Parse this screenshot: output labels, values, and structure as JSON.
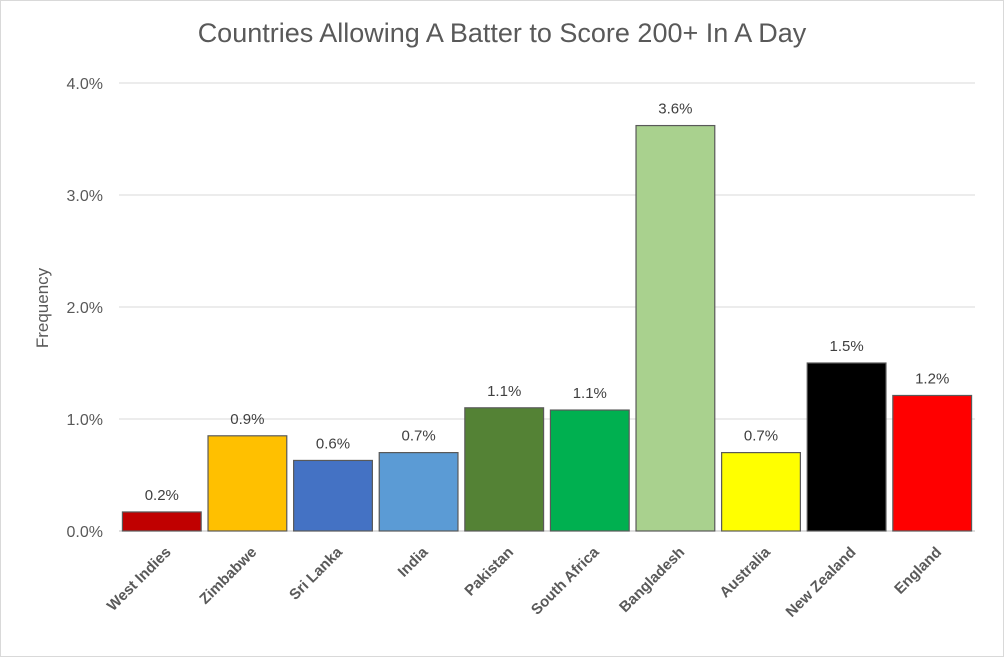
{
  "chart_data": {
    "type": "bar",
    "title": "Countries Allowing A Batter to Score 200+ In A Day",
    "xlabel": "",
    "ylabel": "Frequency",
    "ylim": [
      0,
      4.0
    ],
    "yticks": [
      0,
      1,
      2,
      3,
      4
    ],
    "ytick_labels": [
      "0.0%",
      "1.0%",
      "2.0%",
      "3.0%",
      "4.0%"
    ],
    "grid": true,
    "legend": "none",
    "categories": [
      "West Indies",
      "Zimbabwe",
      "Sri Lanka",
      "India",
      "Pakistan",
      "South Africa",
      "Bangladesh",
      "Australia",
      "New Zealand",
      "England"
    ],
    "values": [
      0.17,
      0.85,
      0.63,
      0.7,
      1.1,
      1.08,
      3.62,
      0.7,
      1.5,
      1.21
    ],
    "data_labels": [
      "0.2%",
      "0.9%",
      "0.6%",
      "0.7%",
      "1.1%",
      "1.1%",
      "3.6%",
      "0.7%",
      "1.5%",
      "1.2%"
    ],
    "colors": [
      "#c00000",
      "#ffc000",
      "#4472c4",
      "#5b9bd5",
      "#548235",
      "#00b050",
      "#a9d18e",
      "#ffff00",
      "#000000",
      "#ff0000"
    ]
  }
}
